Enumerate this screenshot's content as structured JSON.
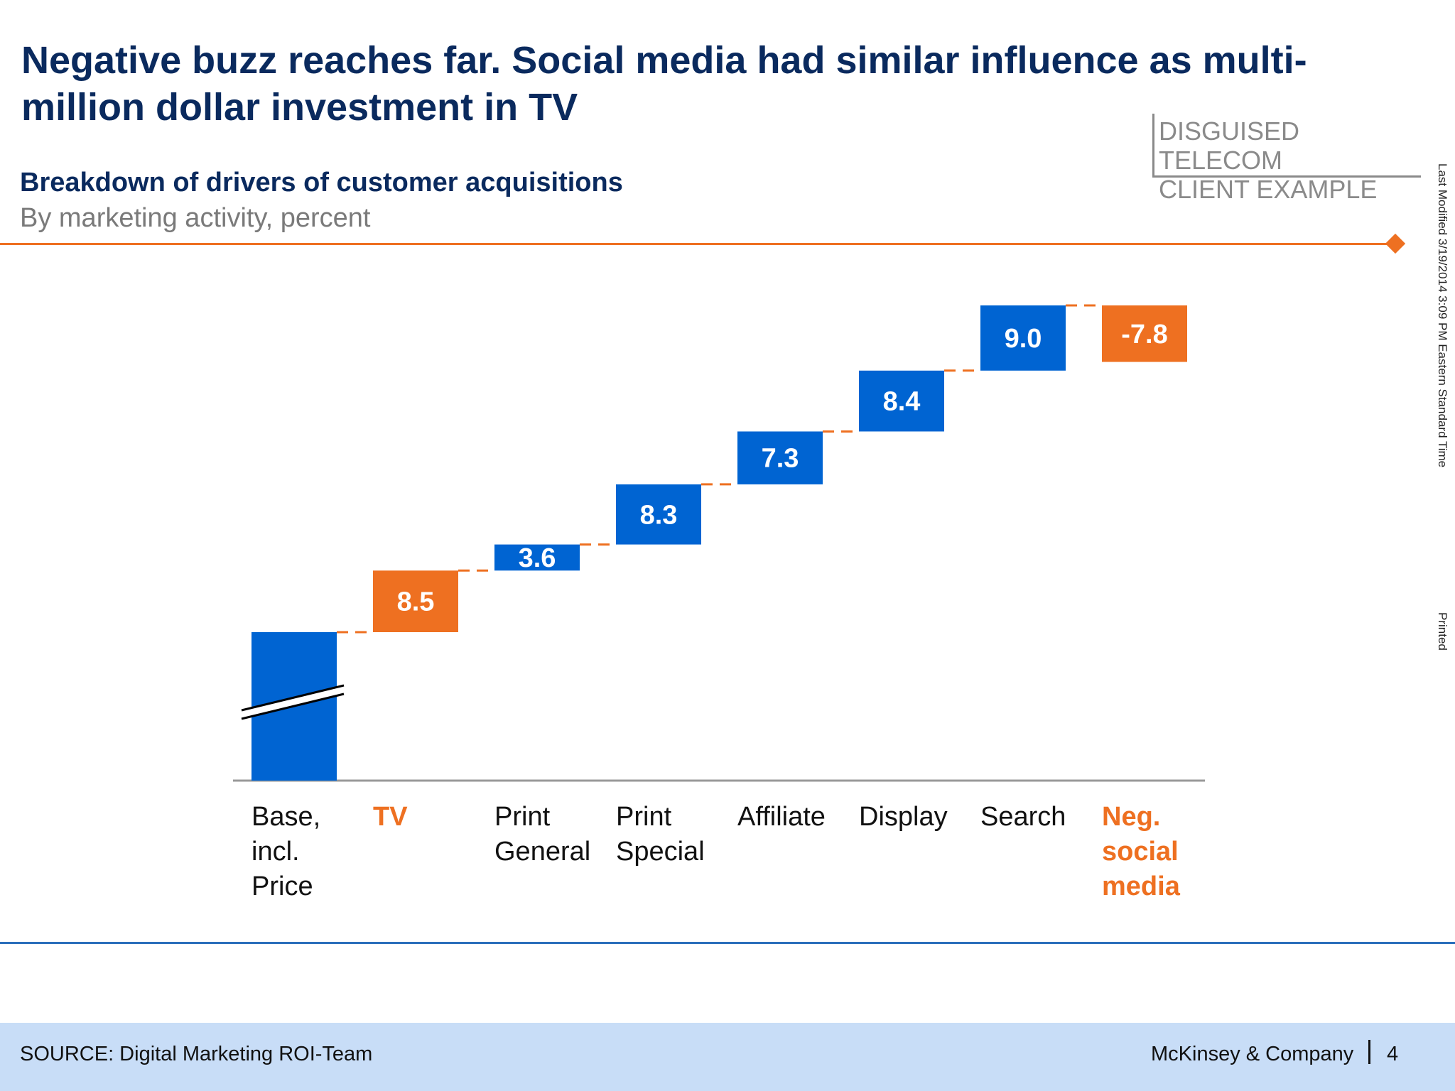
{
  "slide": {
    "title": "Negative buzz reaches far. Social media had similar influence as multi-million dollar investment in TV",
    "stamp_line1": "DISGUISED TELECOM",
    "stamp_line2": "CLIENT EXAMPLE",
    "side_last_modified": "Last Modified 3/19/2014 3:09 PM Eastern Standard Time",
    "side_printed": "Printed",
    "source": "SOURCE: Digital Marketing ROI-Team",
    "company": "McKinsey & Company",
    "page_number": "4"
  },
  "colors": {
    "blue": "#0064d2",
    "orange": "#ee7021",
    "navy": "#0a2a5e",
    "grey": "#7a7a7a",
    "axis": "#999999"
  },
  "chart_data": {
    "type": "waterfall",
    "title": "Breakdown of drivers of customer acquisitions",
    "subtitle": "By marketing activity, percent",
    "axis_break_on_first_bar": true,
    "categories": [
      {
        "label": [
          "Base,",
          "incl.",
          "Price"
        ],
        "highlight": false
      },
      {
        "label": [
          "TV"
        ],
        "highlight": true
      },
      {
        "label": [
          "Print",
          "General"
        ],
        "highlight": false
      },
      {
        "label": [
          "Print",
          "Special"
        ],
        "highlight": false
      },
      {
        "label": [
          "Affiliate"
        ],
        "highlight": false
      },
      {
        "label": [
          "Display"
        ],
        "highlight": false
      },
      {
        "label": [
          "Search"
        ],
        "highlight": false
      },
      {
        "label": [
          "Neg.",
          "social",
          "media"
        ],
        "highlight": true
      }
    ],
    "values": [
      null,
      8.5,
      3.6,
      8.3,
      7.3,
      8.4,
      9.0,
      -7.8
    ],
    "value_labels": [
      "",
      "8.5",
      "3.6",
      "8.3",
      "7.3",
      "8.4",
      "9.0",
      "-7.8"
    ]
  }
}
